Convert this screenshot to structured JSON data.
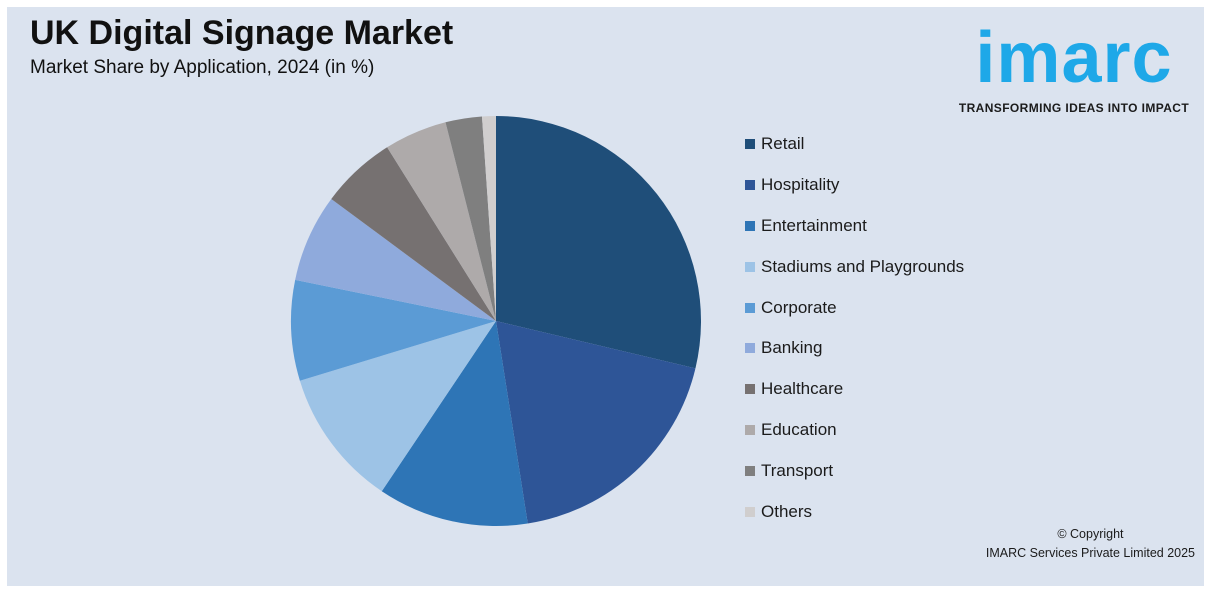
{
  "header": {
    "title": "UK Digital Signage Market",
    "subtitle": "Market Share by Application, 2024 (in %)"
  },
  "logo": {
    "word": "imarc",
    "tagline": "TRANSFORMING IDEAS INTO IMPACT",
    "color": "#1ea8e8"
  },
  "footer": {
    "copyright_line1": "© Copyright",
    "copyright_line2": "IMARC Services Private Limited 2025"
  },
  "chart_data": {
    "type": "pie",
    "title": "UK Digital Signage Market",
    "subtitle": "Market Share by Application, 2024 (in %)",
    "legend_position": "right",
    "start_angle": "12 o'clock, clockwise",
    "categories": [
      "Retail",
      "Hospitality",
      "Entertainment",
      "Stadiums and Playgrounds",
      "Corporate",
      "Banking",
      "Healthcare",
      "Education",
      "Transport",
      "Others"
    ],
    "values": [
      29,
      19,
      12,
      11,
      8,
      7,
      6,
      5,
      2.9,
      1.1
    ],
    "colors": [
      "#1f4e79",
      "#2e5597",
      "#2e75b6",
      "#9dc3e6",
      "#5b9bd5",
      "#8faadc",
      "#767171",
      "#aeaaaa",
      "#7f7f7f",
      "#d0cece"
    ]
  }
}
